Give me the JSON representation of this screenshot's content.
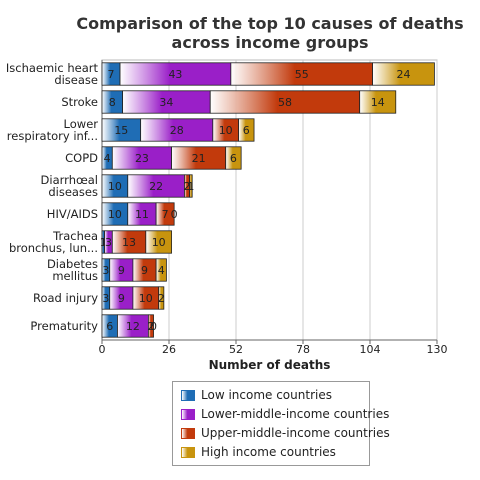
{
  "chart_data": {
    "type": "stacked_bar_horizontal",
    "title": "Comparison of the top 10 causes of deaths across income groups",
    "x_label": "Number of deaths",
    "categories": [
      "Ischaemic heart disease",
      "Stroke",
      "Lower respiratory inf...",
      "COPD",
      "Diarrhœal diseases",
      "HIV/AIDS",
      "Trachea bronchus, lun...",
      "Diabetes mellitus",
      "Road injury",
      "Prematurity"
    ],
    "series": [
      {
        "name": "Low income countries",
        "color": "#1f6db5",
        "values": [
          7,
          8,
          15,
          4,
          10,
          10,
          1,
          3,
          3,
          6
        ]
      },
      {
        "name": "Lower-middle-income countries",
        "color": "#9a1fc8",
        "values": [
          43,
          34,
          28,
          23,
          22,
          11,
          3,
          9,
          9,
          12
        ]
      },
      {
        "name": "Upper-middle-income countries",
        "color": "#c23a0c",
        "values": [
          55,
          58,
          10,
          21,
          2,
          7,
          13,
          9,
          10,
          2
        ]
      },
      {
        "name": "High income countries",
        "color": "#c8940e",
        "values": [
          24,
          14,
          6,
          6,
          1,
          0,
          10,
          4,
          2,
          0
        ]
      }
    ],
    "xlim": [
      0,
      130
    ],
    "xticks": [
      0,
      26,
      52,
      78,
      104,
      130
    ],
    "grid": true,
    "legend": "bottom"
  }
}
